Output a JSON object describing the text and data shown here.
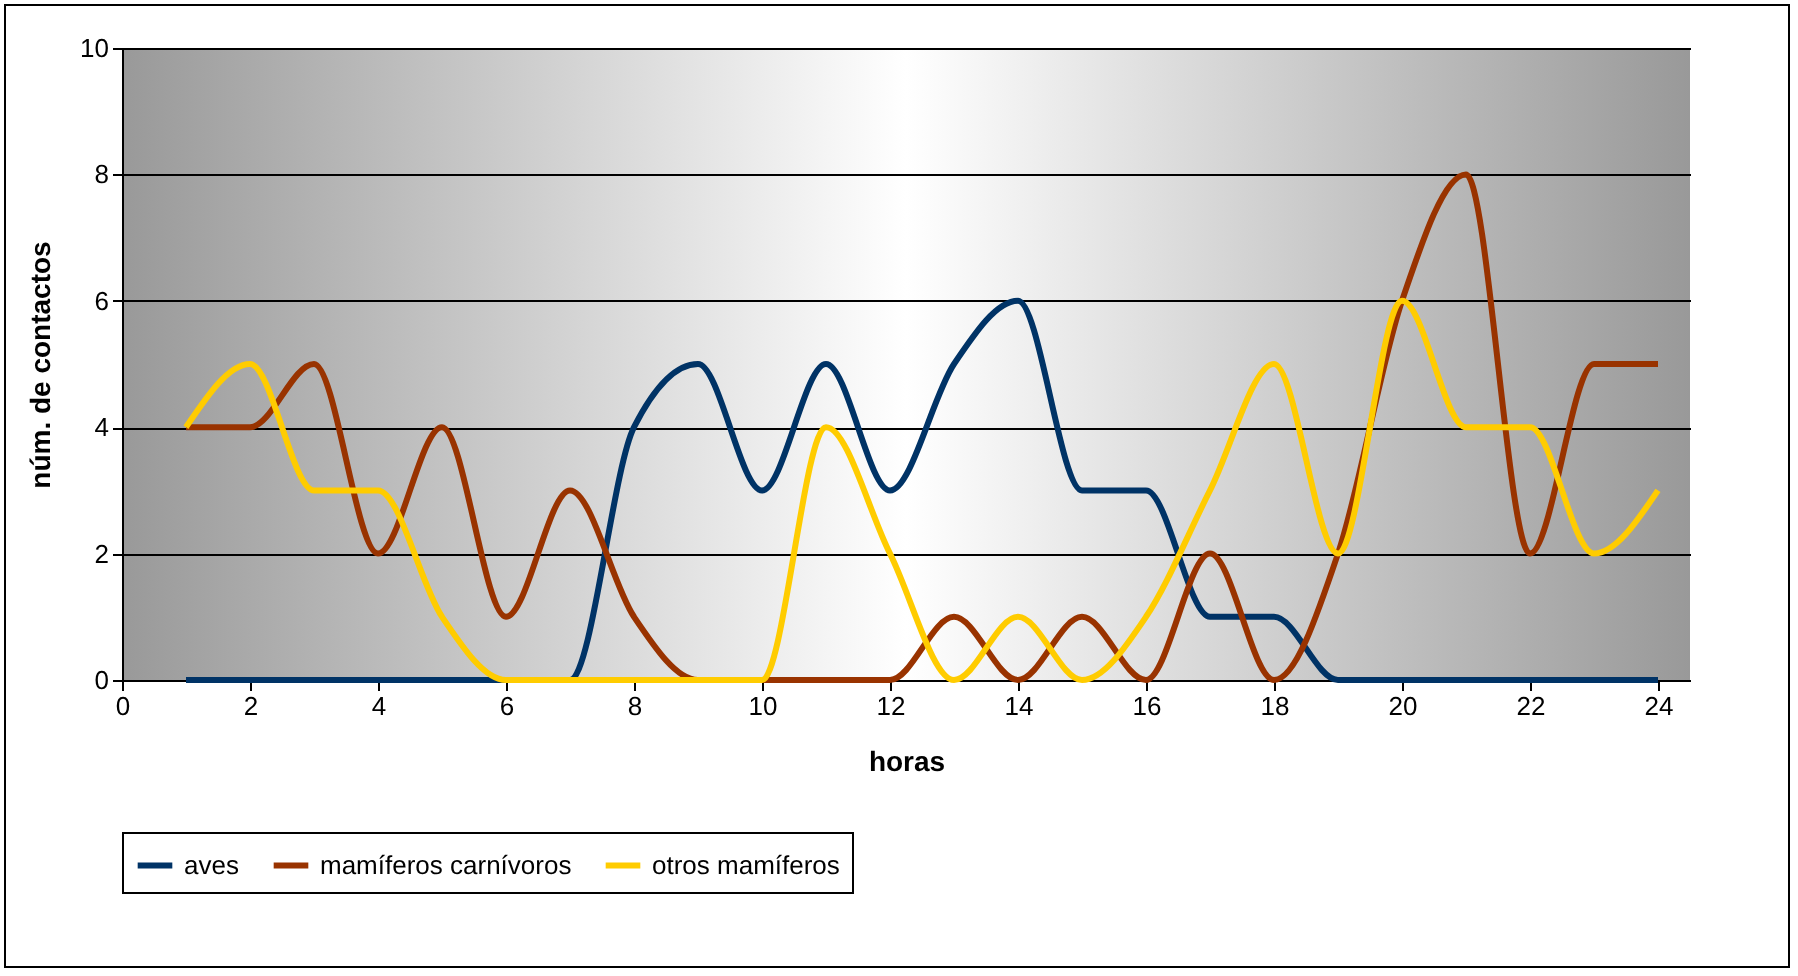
{
  "chart_data": {
    "type": "line",
    "xlabel": "horas",
    "ylabel": "núm. de contactos",
    "x": [
      1,
      2,
      3,
      4,
      5,
      6,
      7,
      8,
      9,
      10,
      11,
      12,
      13,
      14,
      15,
      16,
      17,
      18,
      19,
      20,
      21,
      22,
      23,
      24
    ],
    "xlim": [
      0,
      24.5
    ],
    "xticks": [
      0,
      2,
      4,
      6,
      8,
      10,
      12,
      14,
      16,
      18,
      20,
      22,
      24
    ],
    "ylim": [
      0,
      10
    ],
    "yticks": [
      0,
      2,
      4,
      6,
      8,
      10
    ],
    "grid": "y",
    "legend": "bottom",
    "marker": "none",
    "line_style": "solid",
    "series": [
      {
        "name": "aves",
        "color": "#003366",
        "values": [
          0,
          0,
          0,
          0,
          0,
          0,
          0,
          4,
          5,
          3,
          5,
          3,
          5,
          6,
          3,
          3,
          1,
          1,
          0,
          0,
          0,
          0,
          0,
          0
        ]
      },
      {
        "name": "mamíferos carnívoros",
        "color": "#993300",
        "values": [
          4,
          4,
          5,
          2,
          4,
          1,
          3,
          1,
          0,
          0,
          0,
          0,
          1,
          0,
          1,
          0,
          2,
          0,
          2,
          6,
          8,
          2,
          5,
          5
        ]
      },
      {
        "name": "otros mamíferos",
        "color": "#ffcc00",
        "values": [
          4,
          5,
          3,
          3,
          1,
          0,
          0,
          0,
          0,
          0,
          4,
          2,
          0,
          1,
          0,
          1,
          3,
          5,
          2,
          6,
          4,
          4,
          2,
          3
        ]
      }
    ]
  }
}
